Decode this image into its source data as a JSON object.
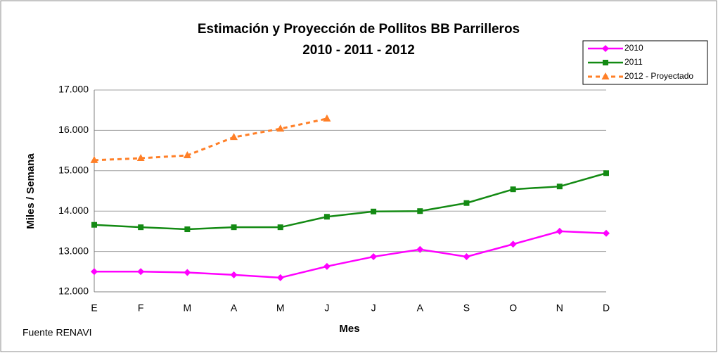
{
  "chart_data": {
    "type": "line",
    "title": "Estimación y Proyección de Pollitos BB Parrilleros",
    "subtitle": "2010 - 2011 - 2012",
    "x_label": "Mes",
    "y_label": "Miles / Semana",
    "source": "Fuente RENAVI",
    "categories": [
      "E",
      "F",
      "M",
      "A",
      "M",
      "J",
      "J",
      "A",
      "S",
      "O",
      "N",
      "D"
    ],
    "series": [
      {
        "name": "2010",
        "color": "#ff00ff",
        "marker": "diamond",
        "dashed": false,
        "values": [
          12500,
          12500,
          12480,
          12420,
          12350,
          12630,
          12870,
          13050,
          12870,
          13180,
          13500,
          13450
        ]
      },
      {
        "name": "2011",
        "color": "#138a13",
        "marker": "square",
        "dashed": false,
        "values": [
          13660,
          13600,
          13550,
          13600,
          13600,
          13860,
          13990,
          14000,
          14200,
          14540,
          14610,
          14940
        ]
      },
      {
        "name": "2012 - Proyectado",
        "color": "#ff7f27",
        "marker": "triangle",
        "dashed": true,
        "values": [
          15260,
          15310,
          15380,
          15830,
          16040,
          16290,
          null,
          null,
          null,
          null,
          null,
          null
        ]
      }
    ],
    "ylim": [
      12000,
      17000
    ],
    "yticks": [
      {
        "value": 12000,
        "label": "12.000"
      },
      {
        "value": 13000,
        "label": "13.000"
      },
      {
        "value": 14000,
        "label": "14.000"
      },
      {
        "value": 15000,
        "label": "15.000"
      },
      {
        "value": 16000,
        "label": "16.000"
      },
      {
        "value": 17000,
        "label": "17.000"
      }
    ],
    "grid": true,
    "legend": "top-right"
  }
}
